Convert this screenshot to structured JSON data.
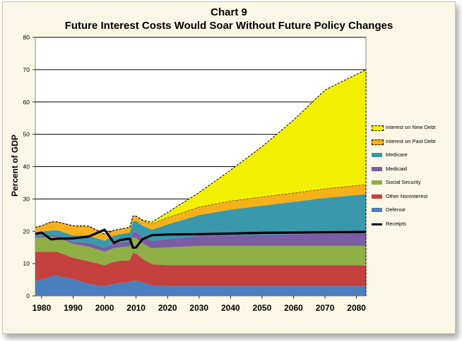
{
  "title": "Chart 9",
  "subtitle": "Future Interest Costs Would Soar Without Future Policy Changes",
  "colors": {
    "interest_new": "#f2f000",
    "interest_past": "#f5b01a",
    "medicare": "#3a98ad",
    "medicaid": "#7a5da3",
    "social_security": "#8faf47",
    "other_noninterest": "#c4413e",
    "defense": "#4a7fbe",
    "receipts": "#000000",
    "plot_bg": "#ffffff",
    "frame_bg": "#fbf7e6"
  },
  "legend": [
    {
      "key": "interest_new",
      "label": "Interest on New Debt",
      "dashed": true
    },
    {
      "key": "interest_past",
      "label": "Interest on Past Debt",
      "dashed": true
    },
    {
      "key": "medicare",
      "label": "Medicare",
      "dashed": false
    },
    {
      "key": "medicaid",
      "label": "Medicaid",
      "dashed": false
    },
    {
      "key": "social_security",
      "label": "Social Security",
      "dashed": false
    },
    {
      "key": "other_noninterest",
      "label": "Other Noninterest",
      "dashed": false
    },
    {
      "key": "defense",
      "label": "Defense",
      "dashed": false
    },
    {
      "key": "receipts",
      "label": "Receipts",
      "line": true
    }
  ],
  "chart_data": {
    "type": "area",
    "title": "Chart 9",
    "subtitle": "Future Interest Costs Would Soar Without Future Policy Changes",
    "xlabel": "",
    "ylabel": "Percent of GDP",
    "xlim": [
      1978,
      2083
    ],
    "ylim": [
      0,
      80
    ],
    "x_ticks": [
      1980,
      1990,
      2000,
      2010,
      2020,
      2030,
      2040,
      2050,
      2060,
      2070,
      2080
    ],
    "y_ticks": [
      0,
      10,
      20,
      30,
      40,
      50,
      60,
      70,
      80
    ],
    "grid": "horizontal",
    "stacked": true,
    "legend_position": "right",
    "x": [
      1978,
      1980,
      1983,
      1985,
      1990,
      1995,
      2000,
      2003,
      2005,
      2008,
      2009,
      2010,
      2012,
      2015,
      2020,
      2030,
      2040,
      2050,
      2060,
      2070,
      2083
    ],
    "series": [
      {
        "name": "Defense",
        "key": "defense",
        "values": [
          4.7,
          5.0,
          6.1,
          6.2,
          5.2,
          3.7,
          3.0,
          3.7,
          4.0,
          4.3,
          4.6,
          4.8,
          4.2,
          3.3,
          3.0,
          3.0,
          3.0,
          3.0,
          3.0,
          3.0,
          3.0
        ]
      },
      {
        "name": "Other Noninterest",
        "key": "other_noninterest",
        "values": [
          9.0,
          8.6,
          7.6,
          7.4,
          6.6,
          7.0,
          6.5,
          6.8,
          6.9,
          6.7,
          8.7,
          8.3,
          7.3,
          6.5,
          6.5,
          6.5,
          6.5,
          6.5,
          6.5,
          6.5,
          6.5
        ]
      },
      {
        "name": "Social Security",
        "key": "social_security",
        "values": [
          4.3,
          4.4,
          4.7,
          4.5,
          4.3,
          4.5,
          4.2,
          4.3,
          4.2,
          4.3,
          4.8,
          4.8,
          4.8,
          5.0,
          5.5,
          6.0,
          6.0,
          6.0,
          6.0,
          6.0,
          6.0
        ]
      },
      {
        "name": "Medicaid",
        "key": "medicaid",
        "values": [
          0.4,
          0.5,
          0.5,
          0.6,
          0.7,
          1.2,
          1.2,
          1.5,
          1.4,
          1.4,
          1.7,
          1.9,
          2.0,
          2.2,
          2.6,
          3.0,
          3.2,
          3.4,
          3.6,
          3.8,
          4.0
        ]
      },
      {
        "name": "Medicare",
        "key": "medicare",
        "values": [
          1.0,
          1.2,
          1.4,
          1.6,
          1.9,
          2.2,
          2.2,
          2.4,
          2.6,
          2.9,
          3.4,
          3.4,
          3.5,
          3.5,
          4.5,
          6.5,
          8.0,
          9.0,
          10.0,
          11.0,
          12.0
        ]
      },
      {
        "name": "Interest on Past Debt",
        "key": "interest_past",
        "values": [
          1.8,
          2.0,
          2.6,
          2.6,
          3.0,
          3.0,
          2.0,
          1.6,
          1.6,
          1.6,
          1.5,
          1.5,
          1.6,
          1.8,
          2.2,
          2.5,
          2.7,
          2.8,
          2.8,
          2.9,
          3.0
        ]
      },
      {
        "name": "Interest on New Debt",
        "key": "interest_new",
        "values": [
          0,
          0,
          0,
          0,
          0,
          0,
          0,
          0,
          0,
          0,
          0,
          0,
          0.1,
          0.5,
          1.5,
          4.5,
          9.5,
          15.5,
          22.5,
          30.5,
          35.5
        ]
      }
    ],
    "receipts": {
      "name": "Receipts",
      "x": [
        1978,
        1980,
        1983,
        1985,
        1990,
        1995,
        2000,
        2003,
        2005,
        2008,
        2009,
        2010,
        2012,
        2015,
        2020,
        2030,
        2040,
        2050,
        2060,
        2070,
        2083
      ],
      "values": [
        19.2,
        19.6,
        17.5,
        17.7,
        17.8,
        18.4,
        20.5,
        16.4,
        17.3,
        17.7,
        14.9,
        15.0,
        17.5,
        18.8,
        19.0,
        19.1,
        19.3,
        19.5,
        19.6,
        19.7,
        19.8
      ]
    }
  }
}
